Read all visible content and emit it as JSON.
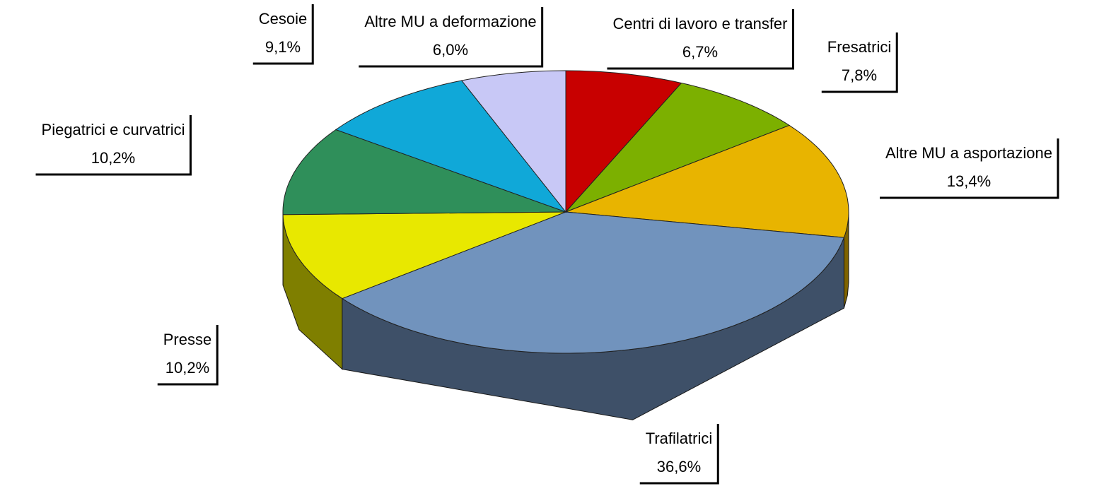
{
  "chart_data": {
    "type": "pie",
    "categories": [
      "Centri di lavoro e transfer",
      "Fresatrici",
      "Altre MU a asportazione",
      "Trafilatrici",
      "Presse",
      "Piegatrici e curvatrici",
      "Cesoie",
      "Altre MU a deformazione"
    ],
    "values": [
      6.7,
      7.8,
      13.4,
      36.6,
      10.2,
      10.2,
      9.1,
      6.0
    ],
    "value_labels": [
      "6,7%",
      "7,8%",
      "13,4%",
      "36,6%",
      "10,2%",
      "10,2%",
      "9,1%",
      "6,0%"
    ],
    "colors": [
      "#c80000",
      "#7cb000",
      "#e8b400",
      "#7193bd",
      "#e8e800",
      "#2f8f5a",
      "#10a8d8",
      "#c8c8f6"
    ]
  }
}
